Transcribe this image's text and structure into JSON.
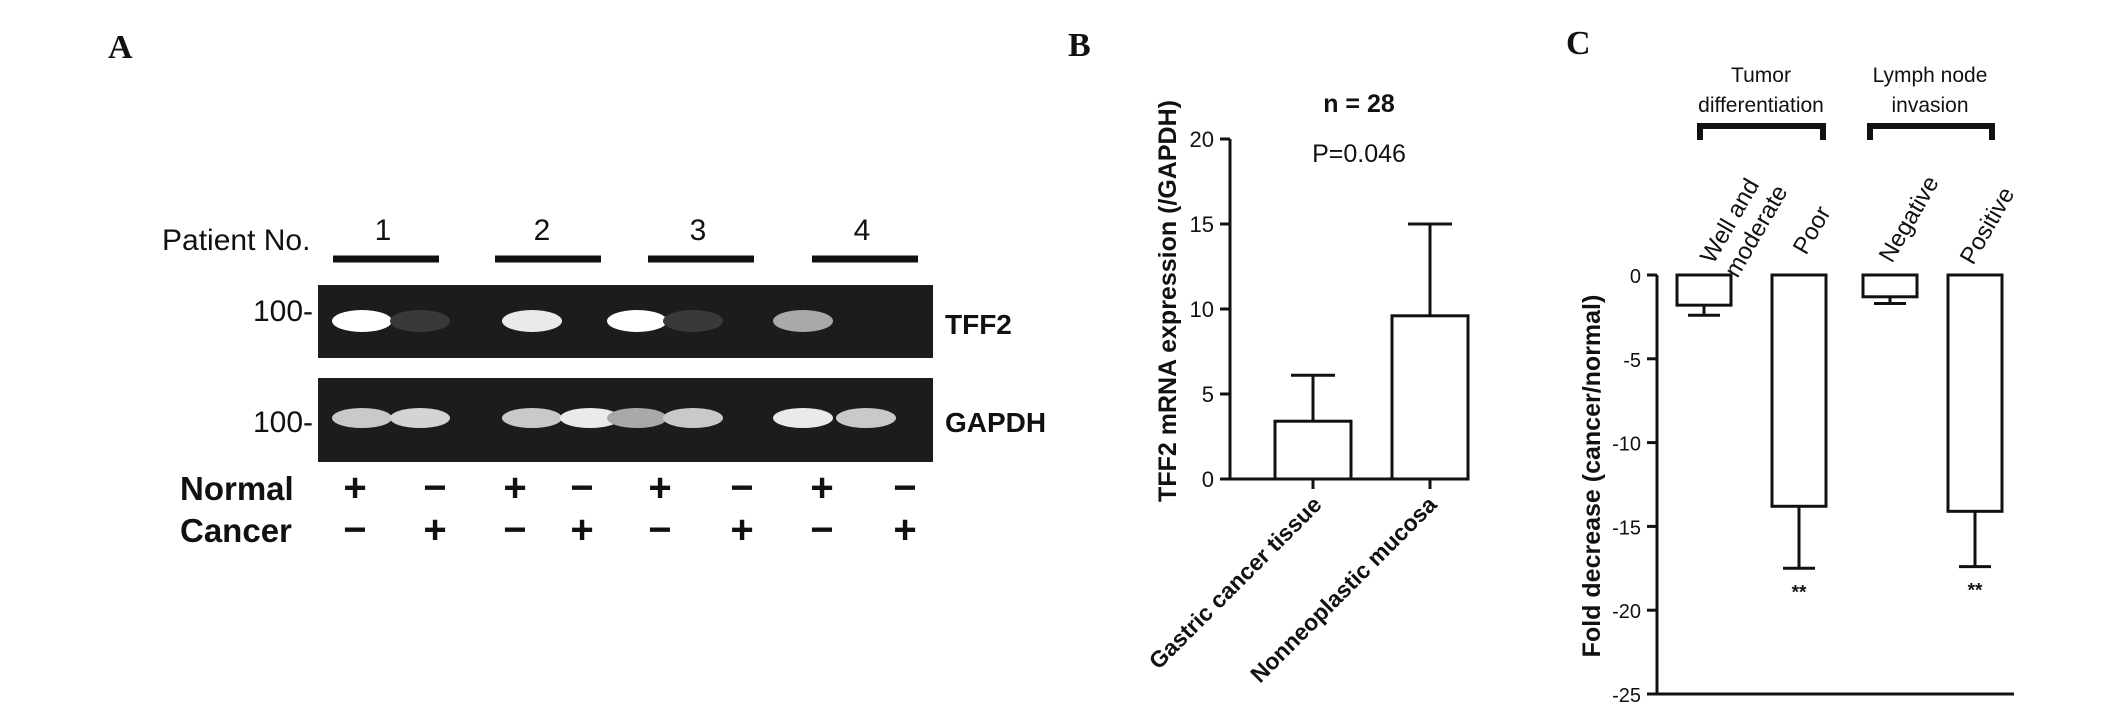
{
  "panel_a": {
    "letter": "A",
    "patient_label": "Patient No.",
    "patients": [
      "1",
      "2",
      "3",
      "4"
    ],
    "marker": "100-",
    "gels": [
      {
        "name": "TFF2",
        "band_intensity": [
          1.0,
          0.08,
          0.9,
          0.0,
          1.0,
          0.08,
          0.6,
          0.0
        ]
      },
      {
        "name": "GAPDH",
        "band_intensity": [
          0.75,
          0.8,
          0.75,
          0.9,
          0.6,
          0.75,
          0.9,
          0.75
        ]
      }
    ],
    "rows": [
      {
        "label": "Normal",
        "signs": [
          "+",
          "−",
          "+",
          "−",
          "+",
          "−",
          "+",
          "−"
        ]
      },
      {
        "label": "Cancer",
        "signs": [
          "−",
          "+",
          "−",
          "+",
          "−",
          "+",
          "−",
          "+"
        ]
      }
    ]
  },
  "panel_b": {
    "letter": "B",
    "annotation_n": "n = 28",
    "annotation_p": "P=0.046"
  },
  "panel_c": {
    "letter": "C",
    "groups": [
      {
        "line1": "Tumor",
        "line2": "differentiation"
      },
      {
        "line1": "Lymph node",
        "line2": "invasion"
      }
    ],
    "category_labels": [
      {
        "line1": "Well and",
        "line2": "moderate"
      },
      {
        "line1": "Poor",
        "line2": ""
      },
      {
        "line1": "Negative",
        "line2": ""
      },
      {
        "line1": "Positive",
        "line2": ""
      }
    ]
  },
  "chart_data": [
    {
      "type": "bar",
      "categories": [
        "Gastric cancer tissue",
        "Nonneoplastic mucosa"
      ],
      "values": [
        3.4,
        9.6
      ],
      "error_upper": [
        6.1,
        15.0
      ],
      "ylabel": "TFF2 mRNA expression (/GAPDH)",
      "ylim": [
        0,
        20
      ],
      "yticks": [
        "0",
        "5",
        "10",
        "15",
        "20"
      ],
      "ytick_values": [
        0,
        5,
        10,
        15,
        20
      ]
    },
    {
      "type": "bar",
      "categories": [
        "Well and moderate",
        "Poor",
        "Negative",
        "Positive"
      ],
      "values": [
        -1.8,
        -13.8,
        -1.3,
        -14.1
      ],
      "error_lower": [
        -2.4,
        -17.5,
        -1.7,
        -17.4
      ],
      "significance": [
        "",
        "**",
        "",
        "**"
      ],
      "ylabel": "Fold decrease  (cancer/normal)",
      "ylim": [
        -25,
        0
      ],
      "yticks": [
        "0",
        "-5",
        "-10",
        "-15",
        "-20",
        "-25"
      ],
      "ytick_values": [
        0,
        -5,
        -10,
        -15,
        -20,
        -25
      ]
    }
  ]
}
